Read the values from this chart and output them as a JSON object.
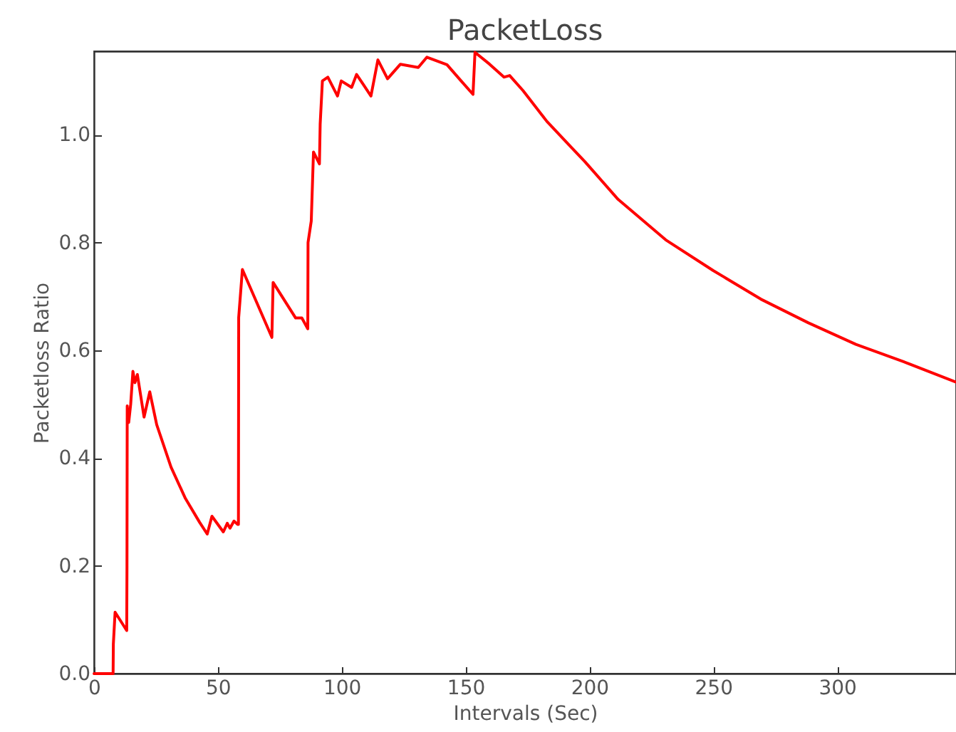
{
  "chart_data": {
    "type": "line",
    "title": "PacketLoss",
    "xlabel": "Intervals (Sec)",
    "ylabel": "Packetloss Ratio",
    "grid": false,
    "xlim": [
      0,
      348
    ],
    "xticks": [
      0,
      50,
      100,
      150,
      200,
      250,
      300
    ],
    "ylim": [
      0,
      1.155
    ],
    "yticks": [
      {
        "value": 0,
        "label": "0.0"
      },
      0.2,
      0.4,
      0.6,
      0.8,
      {
        "value": 1,
        "label": "1.0"
      }
    ],
    "x": [
      0,
      7.7,
      7.8,
      8.5,
      13.2,
      13.3,
      13.4,
      14.0,
      14.8,
      15.7,
      16.5,
      17.5,
      20.2,
      22.5,
      25.3,
      31.1,
      36.9,
      42.6,
      45.7,
      47.6,
      52.2,
      53.8,
      54.9,
      56.5,
      58.0,
      58.3,
      58.4,
      59.9,
      71.8,
      72.3,
      81.4,
      83.9,
      86.3,
      86.4,
      87.7,
      88.6,
      91.0,
      91.3,
      92.2,
      94.4,
      98.3,
      99.8,
      104.0,
      106.0,
      111.8,
      114.6,
      118.5,
      123.7,
      130.9,
      134.4,
      142.5,
      148.2,
      153.0,
      153.8,
      159.7,
      165.5,
      167.8,
      173.2,
      182.8,
      192.4,
      198.2,
      211.6,
      230.8,
      250.0,
      269.2,
      288.4,
      307.6,
      326.8,
      348.0
    ],
    "series": [
      {
        "color": "#ff0000",
        "values": [
          0,
          0,
          0.055,
          0.114,
          0.08,
          0.2,
          0.497,
          0.466,
          0.5,
          0.561,
          0.54,
          0.555,
          0.476,
          0.523,
          0.462,
          0.383,
          0.325,
          0.281,
          0.259,
          0.292,
          0.263,
          0.279,
          0.27,
          0.283,
          0.277,
          0.277,
          0.661,
          0.75,
          0.624,
          0.726,
          0.66,
          0.66,
          0.64,
          0.8,
          0.84,
          0.968,
          0.946,
          1.02,
          1.1,
          1.107,
          1.072,
          1.1,
          1.088,
          1.112,
          1.072,
          1.139,
          1.104,
          1.131,
          1.125,
          1.144,
          1.13,
          1.1,
          1.075,
          1.153,
          1.131,
          1.107,
          1.11,
          1.082,
          1.025,
          0.978,
          0.95,
          0.88,
          0.805,
          0.748,
          0.695,
          0.651,
          0.611,
          0.579,
          0.541
        ]
      }
    ]
  }
}
